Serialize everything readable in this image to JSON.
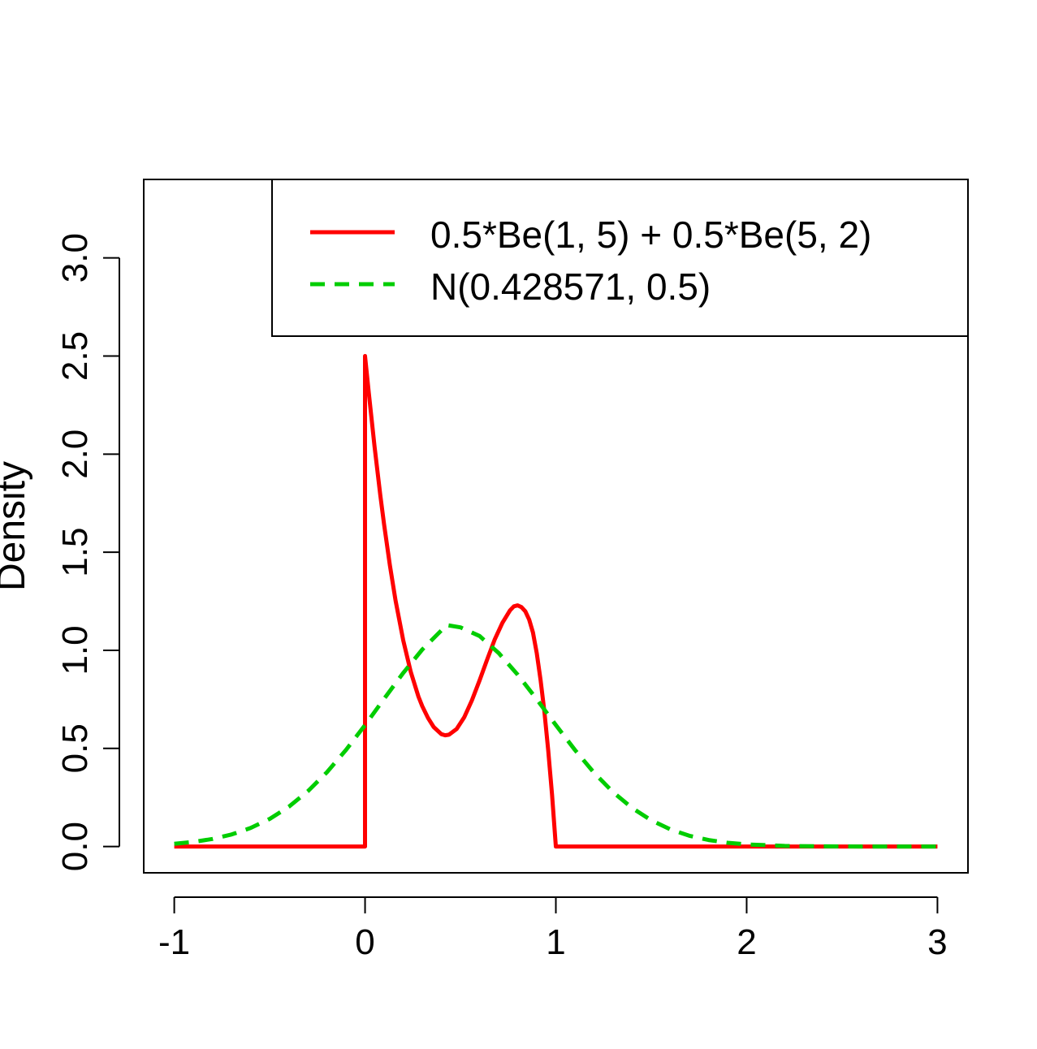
{
  "chart_data": {
    "type": "line",
    "title": "",
    "xlabel": "",
    "ylabel": "Density",
    "xlim": [
      -1.16,
      3.16
    ],
    "ylim": [
      -0.134,
      3.4
    ],
    "x_ticks": [
      -1,
      0,
      1,
      2,
      3
    ],
    "x_tick_labels": [
      "-1",
      "0",
      "1",
      "2",
      "3"
    ],
    "y_ticks": [
      0.0,
      0.5,
      1.0,
      1.5,
      2.0,
      2.5,
      3.0
    ],
    "y_tick_labels": [
      "0.0",
      "0.5",
      "1.0",
      "1.5",
      "2.0",
      "2.5",
      "3.0"
    ],
    "grid": false,
    "legend_position": "top-right",
    "series": [
      {
        "name": "0.5*Be(1, 5) + 0.5*Be(5, 2)",
        "color": "#ff0000",
        "dash": "solid",
        "x": [
          -1,
          -0.5,
          -0.0001,
          0.0,
          0.02,
          0.05,
          0.08,
          0.1,
          0.13,
          0.16,
          0.2,
          0.24,
          0.28,
          0.3,
          0.33,
          0.36,
          0.4,
          0.42,
          0.44,
          0.48,
          0.52,
          0.56,
          0.6,
          0.64,
          0.68,
          0.72,
          0.76,
          0.78,
          0.8,
          0.82,
          0.84,
          0.86,
          0.88,
          0.9,
          0.92,
          0.94,
          0.96,
          0.98,
          0.9999,
          1.0,
          1.5,
          2.0,
          2.5,
          3.0
        ],
        "y": [
          0,
          0,
          0,
          2.5,
          2.31,
          2.036,
          1.791,
          1.641,
          1.434,
          1.254,
          1.052,
          0.889,
          0.764,
          0.715,
          0.655,
          0.609,
          0.573,
          0.567,
          0.57,
          0.599,
          0.659,
          0.745,
          0.846,
          0.953,
          1.056,
          1.14,
          1.204,
          1.224,
          1.229,
          1.22,
          1.199,
          1.157,
          1.091,
          0.985,
          0.848,
          0.687,
          0.49,
          0.265,
          0.0,
          0,
          0,
          0,
          0,
          0
        ]
      },
      {
        "name": "N(0.428571, 0.5)",
        "color": "#00cd00",
        "dash": "dashed",
        "x": [
          -1.0,
          -0.9,
          -0.8,
          -0.7,
          -0.6,
          -0.5,
          -0.4,
          -0.3,
          -0.2,
          -0.1,
          0.0,
          0.1,
          0.2,
          0.3,
          0.4,
          0.428571,
          0.5,
          0.6,
          0.7,
          0.8,
          0.9,
          1.0,
          1.1,
          1.2,
          1.3,
          1.4,
          1.5,
          1.6,
          1.7,
          1.8,
          1.9,
          2.0,
          2.2,
          2.4,
          2.6,
          2.8,
          3.0
        ],
        "y": [
          0.0136,
          0.0233,
          0.0384,
          0.0613,
          0.0945,
          0.1407,
          0.2026,
          0.2818,
          0.3789,
          0.4924,
          0.6187,
          0.7528,
          0.8843,
          1.0038,
          1.1012,
          1.1284,
          1.1168,
          1.0729,
          0.9865,
          0.8759,
          0.7502,
          0.6193,
          0.4919,
          0.3763,
          0.2769,
          0.1961,
          0.1336,
          0.0874,
          0.0549,
          0.0331,
          0.0192,
          0.0107,
          0.0029,
          0.0007,
          0.0001,
          0.0,
          0.0
        ]
      }
    ]
  }
}
